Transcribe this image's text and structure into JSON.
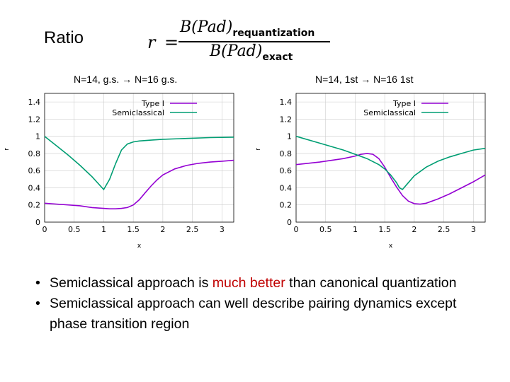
{
  "slide": {
    "title": "Ratio",
    "formula": {
      "lhs": "r",
      "eq": "=",
      "numerator": "B(Pad)",
      "numerator_sub": "requantization",
      "denominator": "B(Pad)",
      "denominator_sub": "exact"
    }
  },
  "panels": [
    {
      "label_from": "N=14, g.s.",
      "arrow": "→",
      "label_to": "N=16 g.s."
    },
    {
      "label_from": "N=14, 1st",
      "arrow": "→",
      "label_to": "N=16 1st"
    }
  ],
  "bullets": [
    {
      "dot": "•",
      "before": "Semiclassical approach is ",
      "highlight": "much better",
      "after": " than canonical quantization"
    },
    {
      "dot": "•",
      "before": "Semiclassical approach can well describe pairing dynamics except phase transition region",
      "highlight": "",
      "after": ""
    }
  ],
  "colors": {
    "type1": "#9400d3",
    "semiclassical": "#009e73",
    "highlight": "#c00000"
  },
  "chart_data": [
    {
      "type": "line",
      "xlabel": "x",
      "ylabel": "r",
      "xlim": [
        0,
        3.2
      ],
      "ylim": [
        0,
        1.5
      ],
      "xticks": [
        "0",
        "0.5",
        "1",
        "1.5",
        "2",
        "2.5",
        "3"
      ],
      "yticks": [
        "0",
        "0.2",
        "0.4",
        "0.6",
        "0.8",
        "1",
        "1.2",
        "1.4"
      ],
      "grid": true,
      "legend": "top-right",
      "series": [
        {
          "name": "Type I",
          "color": "#9400d3",
          "x": [
            0,
            0.2,
            0.4,
            0.6,
            0.8,
            1.0,
            1.1,
            1.2,
            1.3,
            1.4,
            1.5,
            1.6,
            1.7,
            1.8,
            1.9,
            2.0,
            2.2,
            2.4,
            2.6,
            2.8,
            3.0,
            3.2
          ],
          "y": [
            0.22,
            0.21,
            0.2,
            0.19,
            0.17,
            0.16,
            0.155,
            0.155,
            0.16,
            0.17,
            0.2,
            0.26,
            0.34,
            0.42,
            0.49,
            0.55,
            0.62,
            0.66,
            0.685,
            0.7,
            0.71,
            0.72
          ]
        },
        {
          "name": "Semiclassical",
          "color": "#009e73",
          "x": [
            0,
            0.2,
            0.4,
            0.6,
            0.8,
            1.0,
            1.1,
            1.2,
            1.3,
            1.4,
            1.5,
            1.6,
            1.8,
            2.0,
            2.4,
            2.8,
            3.2
          ],
          "y": [
            1.0,
            0.89,
            0.78,
            0.66,
            0.53,
            0.38,
            0.5,
            0.68,
            0.84,
            0.91,
            0.935,
            0.945,
            0.955,
            0.965,
            0.975,
            0.985,
            0.99
          ]
        }
      ]
    },
    {
      "type": "line",
      "xlabel": "x",
      "ylabel": "r",
      "xlim": [
        0,
        3.2
      ],
      "ylim": [
        0,
        1.5
      ],
      "xticks": [
        "0",
        "0.5",
        "1",
        "1.5",
        "2",
        "2.5",
        "3"
      ],
      "yticks": [
        "0",
        "0.2",
        "0.4",
        "0.6",
        "0.8",
        "1",
        "1.2",
        "1.4"
      ],
      "grid": true,
      "legend": "top-right",
      "series": [
        {
          "name": "Type I",
          "color": "#9400d3",
          "x": [
            0,
            0.4,
            0.8,
            1.0,
            1.1,
            1.2,
            1.3,
            1.4,
            1.5,
            1.6,
            1.7,
            1.8,
            1.9,
            2.0,
            2.1,
            2.2,
            2.4,
            2.6,
            2.8,
            3.0,
            3.2
          ],
          "y": [
            0.67,
            0.7,
            0.74,
            0.77,
            0.79,
            0.8,
            0.79,
            0.74,
            0.64,
            0.52,
            0.41,
            0.31,
            0.245,
            0.215,
            0.21,
            0.22,
            0.27,
            0.33,
            0.4,
            0.47,
            0.55
          ]
        },
        {
          "name": "Semiclassical",
          "color": "#009e73",
          "x": [
            0,
            0.4,
            0.8,
            1.2,
            1.4,
            1.5,
            1.6,
            1.7,
            1.75,
            1.8,
            1.9,
            2.0,
            2.2,
            2.4,
            2.6,
            2.8,
            3.0,
            3.2
          ],
          "y": [
            1.0,
            0.92,
            0.84,
            0.74,
            0.67,
            0.62,
            0.55,
            0.46,
            0.4,
            0.38,
            0.46,
            0.54,
            0.64,
            0.71,
            0.76,
            0.8,
            0.84,
            0.86
          ]
        }
      ]
    }
  ]
}
